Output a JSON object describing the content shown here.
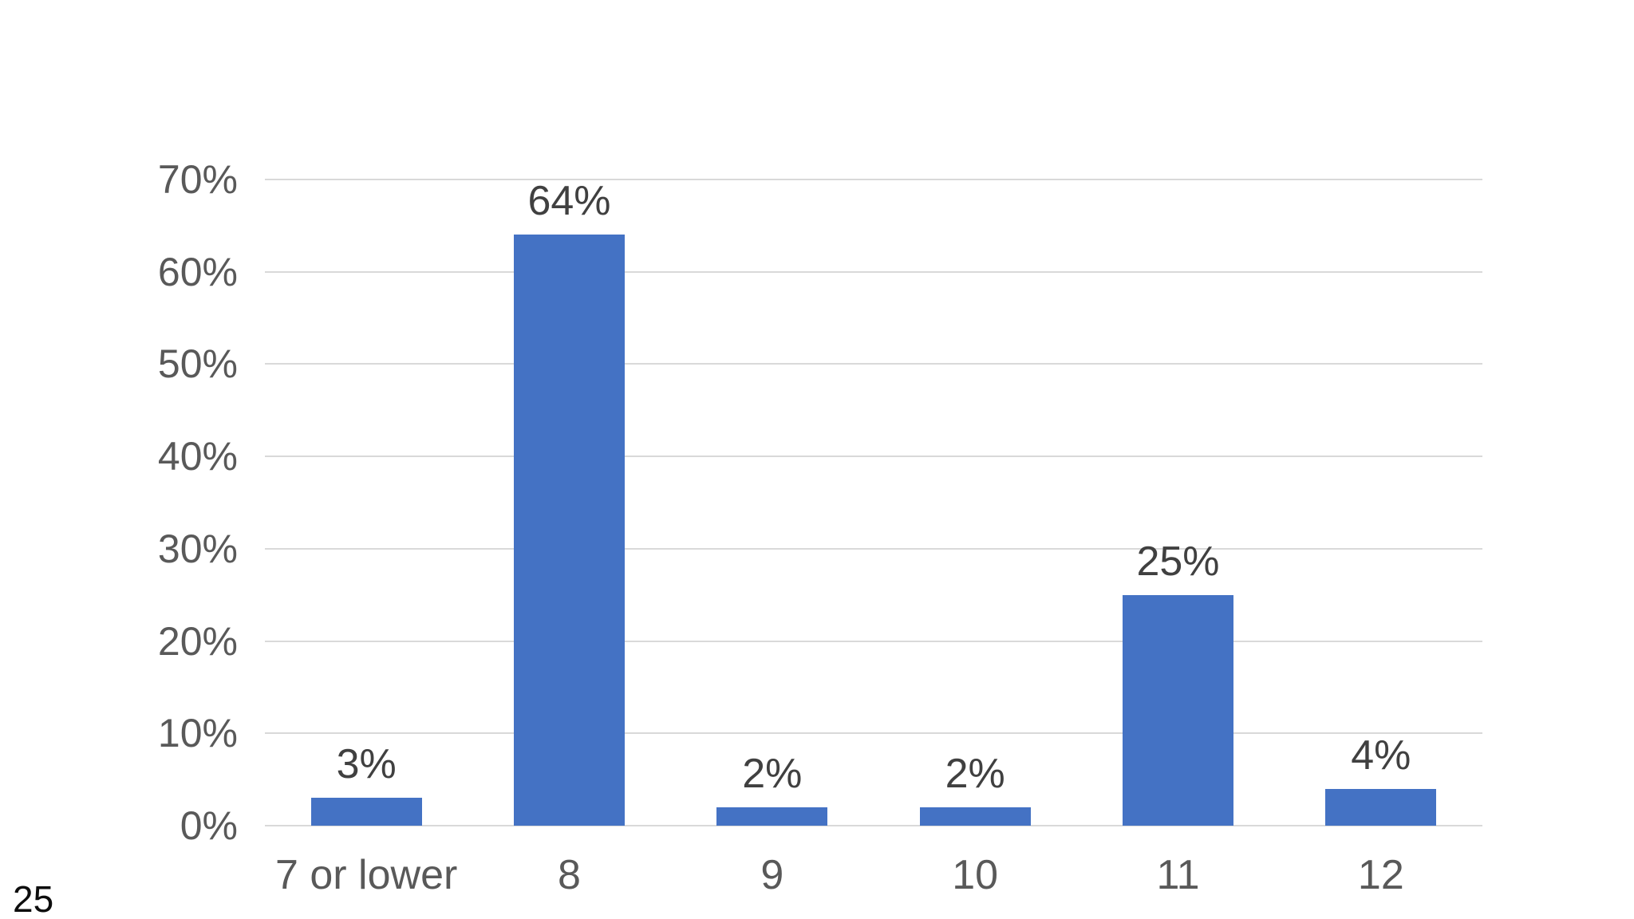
{
  "page": {
    "slide_number": "25",
    "background_color": "#ffffff"
  },
  "chart_data": {
    "type": "bar",
    "title": "",
    "xlabel": "",
    "ylabel": "",
    "categories": [
      "7 or lower",
      "8",
      "9",
      "10",
      "11",
      "12"
    ],
    "values": [
      3,
      64,
      2,
      2,
      25,
      4
    ],
    "data_labels": [
      "3%",
      "64%",
      "2%",
      "2%",
      "25%",
      "4%"
    ],
    "ylim": [
      0,
      70
    ],
    "ytick_step": 10,
    "ytick_labels": [
      "0%",
      "10%",
      "20%",
      "30%",
      "40%",
      "50%",
      "60%",
      "70%"
    ],
    "grid": true,
    "legend_position": "none",
    "bar_color": "#4472C4",
    "gridline_color": "#D9D9D9",
    "axis_label_color": "#595959",
    "data_label_color": "#404040"
  }
}
